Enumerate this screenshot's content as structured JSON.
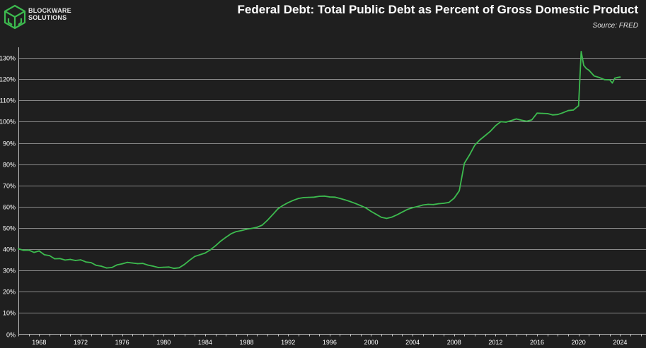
{
  "brand": {
    "line1": "BLOCKWARE",
    "line2": "SOLUTIONS",
    "accent": "#3dbb4f"
  },
  "chart_data": {
    "type": "line",
    "title": "Federal Debt: Total Public Debt as Percent of Gross Domestic Product",
    "source": "Source: FRED",
    "xlabel": "",
    "ylabel": "",
    "xlim": [
      1966,
      2026.5
    ],
    "ylim": [
      0,
      135
    ],
    "x_ticks": [
      1968,
      1972,
      1976,
      1980,
      1984,
      1988,
      1992,
      1996,
      2000,
      2004,
      2008,
      2012,
      2016,
      2020,
      2024
    ],
    "y_ticks": [
      0,
      10,
      20,
      30,
      40,
      50,
      60,
      70,
      80,
      90,
      100,
      110,
      120,
      130
    ],
    "y_tick_suffix": "%",
    "grid": "horizontal",
    "line_color": "#3dbb4f",
    "series": [
      {
        "name": "Total Public Debt as Percent of GDP",
        "x": [
          1966.0,
          1966.5,
          1967.0,
          1967.5,
          1968.0,
          1968.5,
          1969.0,
          1969.5,
          1970.0,
          1970.5,
          1971.0,
          1971.5,
          1972.0,
          1972.5,
          1973.0,
          1973.5,
          1974.0,
          1974.5,
          1975.0,
          1975.5,
          1976.0,
          1976.5,
          1977.0,
          1977.5,
          1978.0,
          1978.5,
          1979.0,
          1979.5,
          1980.0,
          1980.5,
          1981.0,
          1981.5,
          1982.0,
          1982.5,
          1983.0,
          1983.5,
          1984.0,
          1984.5,
          1985.0,
          1985.5,
          1986.0,
          1986.5,
          1987.0,
          1987.5,
          1988.0,
          1988.5,
          1989.0,
          1989.5,
          1990.0,
          1990.5,
          1991.0,
          1991.5,
          1992.0,
          1992.5,
          1993.0,
          1993.5,
          1994.0,
          1994.5,
          1995.0,
          1995.5,
          1996.0,
          1996.5,
          1997.0,
          1997.5,
          1998.0,
          1998.5,
          1999.0,
          1999.5,
          2000.0,
          2000.5,
          2001.0,
          2001.5,
          2002.0,
          2002.5,
          2003.0,
          2003.5,
          2004.0,
          2004.5,
          2005.0,
          2005.5,
          2006.0,
          2006.5,
          2007.0,
          2007.5,
          2008.0,
          2008.5,
          2009.0,
          2009.5,
          2010.0,
          2010.5,
          2011.0,
          2011.5,
          2012.0,
          2012.5,
          2013.0,
          2013.5,
          2014.0,
          2014.5,
          2015.0,
          2015.5,
          2016.0,
          2016.5,
          2017.0,
          2017.5,
          2018.0,
          2018.5,
          2019.0,
          2019.5,
          2020.0,
          2020.25,
          2020.5,
          2020.75,
          2021.0,
          2021.5,
          2022.0,
          2022.5,
          2023.0,
          2023.25,
          2023.5,
          2023.75,
          2024.0
        ],
        "values": [
          40.2,
          39.5,
          39.6,
          38.5,
          39.2,
          37.4,
          37.0,
          35.5,
          35.6,
          34.9,
          35.2,
          34.7,
          35.0,
          34.0,
          33.7,
          32.4,
          32.0,
          31.2,
          31.4,
          32.6,
          33.1,
          33.8,
          33.5,
          33.2,
          33.3,
          32.5,
          32.0,
          31.4,
          31.5,
          31.6,
          31.0,
          31.3,
          32.8,
          34.8,
          36.6,
          37.4,
          38.2,
          39.7,
          41.6,
          43.8,
          45.6,
          47.3,
          48.3,
          48.8,
          49.4,
          49.8,
          50.3,
          51.3,
          53.6,
          56.2,
          58.9,
          60.6,
          61.9,
          63.0,
          63.9,
          64.3,
          64.4,
          64.5,
          64.9,
          65.0,
          64.6,
          64.5,
          63.9,
          63.2,
          62.4,
          61.5,
          60.5,
          59.4,
          57.8,
          56.4,
          55.0,
          54.5,
          55.1,
          56.2,
          57.5,
          58.7,
          59.5,
          60.1,
          60.8,
          61.1,
          61.0,
          61.4,
          61.6,
          62.0,
          64.0,
          67.5,
          80.5,
          84.5,
          89.0,
          91.5,
          93.5,
          95.5,
          98.1,
          100.0,
          99.8,
          100.5,
          101.3,
          100.7,
          100.2,
          100.9,
          104.0,
          103.9,
          103.8,
          103.2,
          103.4,
          104.2,
          105.2,
          105.5,
          107.5,
          133.0,
          126.5,
          125.0,
          124.2,
          121.5,
          120.8,
          119.8,
          119.7,
          118.2,
          120.5,
          120.8,
          121.0
        ]
      }
    ]
  }
}
